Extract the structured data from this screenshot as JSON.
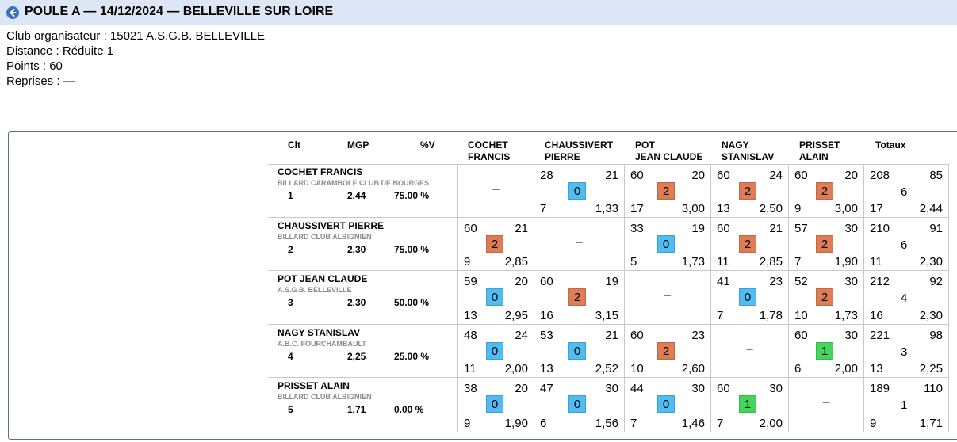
{
  "header": {
    "title": "POULE A — 14/12/2024 — BELLEVILLE SUR LOIRE"
  },
  "info": {
    "club": "Club organisateur : 15021 A.S.G.B. BELLEVILLE",
    "distance": "Distance : Réduite 1",
    "points": "Points : 60",
    "reprises": "Reprises : —"
  },
  "columns": {
    "clt": "Clt",
    "mgp": "MGP",
    "pv": "%V",
    "opponents": [
      [
        "COCHET",
        "FRANCIS"
      ],
      [
        "CHAUSSIVERT",
        "PIERRE"
      ],
      [
        "POT",
        "JEAN CLAUDE"
      ],
      [
        "NAGY",
        "STANISLAV"
      ],
      [
        "PRISSET",
        "ALAIN"
      ]
    ],
    "totals": "Totaux"
  },
  "colors": {
    "win": "#e07c55",
    "draw": "#4fbdf3",
    "loss_one": "#44d65c",
    "header_bg": "#dde6f4"
  },
  "players": [
    {
      "name": "COCHET FRANCIS",
      "club": "BILLARD CARAMBOLE CLUB DE BOURGES",
      "clt": "1",
      "mgp": "2,44",
      "pv": "75.00 %",
      "results": [
        null,
        {
          "pts": "28",
          "opp": "21",
          "score": "0",
          "rep": "7",
          "avg": "1,33",
          "color": "draw"
        },
        {
          "pts": "60",
          "opp": "20",
          "score": "2",
          "rep": "17",
          "avg": "3,00",
          "color": "win"
        },
        {
          "pts": "60",
          "opp": "24",
          "score": "2",
          "rep": "13",
          "avg": "2,50",
          "color": "win"
        },
        {
          "pts": "60",
          "opp": "20",
          "score": "2",
          "rep": "9",
          "avg": "3,00",
          "color": "win"
        }
      ],
      "totals": {
        "pts": "208",
        "opp": "85",
        "score": "6",
        "rep": "17",
        "avg": "2,44"
      }
    },
    {
      "name": "CHAUSSIVERT PIERRE",
      "club": "BILLARD CLUB ALBIGNIEN",
      "clt": "2",
      "mgp": "2,30",
      "pv": "75.00 %",
      "results": [
        {
          "pts": "60",
          "opp": "21",
          "score": "2",
          "rep": "9",
          "avg": "2,85",
          "color": "win"
        },
        null,
        {
          "pts": "33",
          "opp": "19",
          "score": "0",
          "rep": "5",
          "avg": "1,73",
          "color": "draw"
        },
        {
          "pts": "60",
          "opp": "21",
          "score": "2",
          "rep": "11",
          "avg": "2,85",
          "color": "win"
        },
        {
          "pts": "57",
          "opp": "30",
          "score": "2",
          "rep": "7",
          "avg": "1,90",
          "color": "win"
        }
      ],
      "totals": {
        "pts": "210",
        "opp": "91",
        "score": "6",
        "rep": "11",
        "avg": "2,30"
      }
    },
    {
      "name": "POT JEAN CLAUDE",
      "club": "A.S.G.B. BELLEVILLE",
      "clt": "3",
      "mgp": "2,30",
      "pv": "50.00 %",
      "results": [
        {
          "pts": "59",
          "opp": "20",
          "score": "0",
          "rep": "13",
          "avg": "2,95",
          "color": "draw"
        },
        {
          "pts": "60",
          "opp": "19",
          "score": "2",
          "rep": "16",
          "avg": "3,15",
          "color": "win"
        },
        null,
        {
          "pts": "41",
          "opp": "23",
          "score": "0",
          "rep": "7",
          "avg": "1,78",
          "color": "draw"
        },
        {
          "pts": "52",
          "opp": "30",
          "score": "2",
          "rep": "10",
          "avg": "1,73",
          "color": "win"
        }
      ],
      "totals": {
        "pts": "212",
        "opp": "92",
        "score": "4",
        "rep": "16",
        "avg": "2,30"
      }
    },
    {
      "name": "NAGY STANISLAV",
      "club": "A.B.C. FOURCHAMBAULT",
      "clt": "4",
      "mgp": "2,25",
      "pv": "25.00 %",
      "results": [
        {
          "pts": "48",
          "opp": "24",
          "score": "0",
          "rep": "11",
          "avg": "2,00",
          "color": "draw"
        },
        {
          "pts": "53",
          "opp": "21",
          "score": "0",
          "rep": "13",
          "avg": "2,52",
          "color": "draw"
        },
        {
          "pts": "60",
          "opp": "23",
          "score": "2",
          "rep": "10",
          "avg": "2,60",
          "color": "win"
        },
        null,
        {
          "pts": "60",
          "opp": "30",
          "score": "1",
          "rep": "6",
          "avg": "2,00",
          "color": "loss_one"
        }
      ],
      "totals": {
        "pts": "221",
        "opp": "98",
        "score": "3",
        "rep": "13",
        "avg": "2,25"
      }
    },
    {
      "name": "PRISSET ALAIN",
      "club": "BILLARD CLUB ALBIGNIEN",
      "clt": "5",
      "mgp": "1,71",
      "pv": "0.00 %",
      "results": [
        {
          "pts": "38",
          "opp": "20",
          "score": "0",
          "rep": "9",
          "avg": "1,90",
          "color": "draw"
        },
        {
          "pts": "47",
          "opp": "30",
          "score": "0",
          "rep": "6",
          "avg": "1,56",
          "color": "draw"
        },
        {
          "pts": "44",
          "opp": "30",
          "score": "0",
          "rep": "7",
          "avg": "1,46",
          "color": "draw"
        },
        {
          "pts": "60",
          "opp": "30",
          "score": "1",
          "rep": "7",
          "avg": "2,00",
          "color": "loss_one"
        },
        null
      ],
      "totals": {
        "pts": "189",
        "opp": "110",
        "score": "1",
        "rep": "9",
        "avg": "1,71"
      }
    }
  ],
  "empty_cell": "–"
}
